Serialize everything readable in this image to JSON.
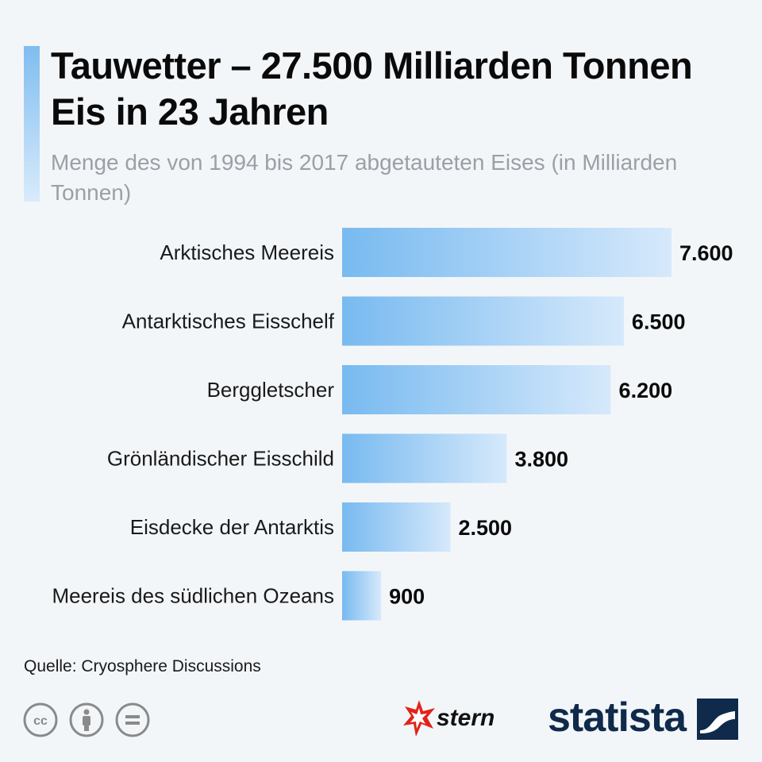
{
  "header": {
    "title": "Tauwetter – 27.500 Milliarden Tonnen Eis in 23 Jahren",
    "subtitle": "Menge des von 1994 bis 2017 abgetauteten Eises (in Milliarden Tonnen)"
  },
  "chart_data": {
    "type": "bar",
    "orientation": "horizontal",
    "categories": [
      "Arktisches Meereis",
      "Antarktisches Eisschelf",
      "Berggletscher",
      "Grönländischer Eisschild",
      "Eisdecke der Antarktis",
      "Meereis des südlichen Ozeans"
    ],
    "values": [
      7600,
      6500,
      6200,
      3800,
      2500,
      900
    ],
    "value_labels": [
      "7.600",
      "6.500",
      "6.200",
      "3.800",
      "2.500",
      "900"
    ],
    "title": "Tauwetter – 27.500 Milliarden Tonnen Eis in 23 Jahren",
    "xlabel": "",
    "ylabel": "",
    "xlim": [
      0,
      7600
    ],
    "grid": false,
    "bar_gradient": [
      "#78baf0",
      "#d6e9fb"
    ]
  },
  "footer": {
    "source": "Quelle: Cryosphere Discussions",
    "stern_logo": "stern",
    "statista_logo": "statista",
    "license_icons": [
      "cc-icon",
      "attribution-icon",
      "no-derivatives-icon"
    ]
  }
}
